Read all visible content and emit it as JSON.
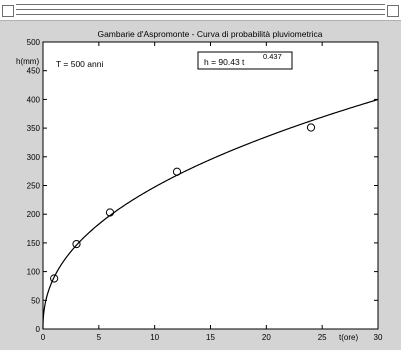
{
  "chart_data": {
    "type": "scatter",
    "title": "Gambarie d'Aspromonte - Curva di probabilità pluviometrica",
    "xlabel": "t(ore)",
    "ylabel": "h(mm)",
    "xlim": [
      0,
      30
    ],
    "ylim": [
      0,
      500
    ],
    "xticks": [
      "0",
      "5",
      "10",
      "15",
      "20",
      "25",
      "30"
    ],
    "yticks": [
      "0",
      "50",
      "100",
      "150",
      "200",
      "250",
      "300",
      "350",
      "400",
      "450",
      "500"
    ],
    "annotation_left": "T = 500 anni",
    "equation": {
      "text": "h = 90.43 t",
      "exponent": "0.437",
      "coefficient": 90.43,
      "power": 0.437
    },
    "points": [
      {
        "x": 1,
        "y": 88
      },
      {
        "x": 3,
        "y": 148
      },
      {
        "x": 6,
        "y": 203
      },
      {
        "x": 12,
        "y": 274
      },
      {
        "x": 24,
        "y": 351
      }
    ],
    "grid": false
  }
}
